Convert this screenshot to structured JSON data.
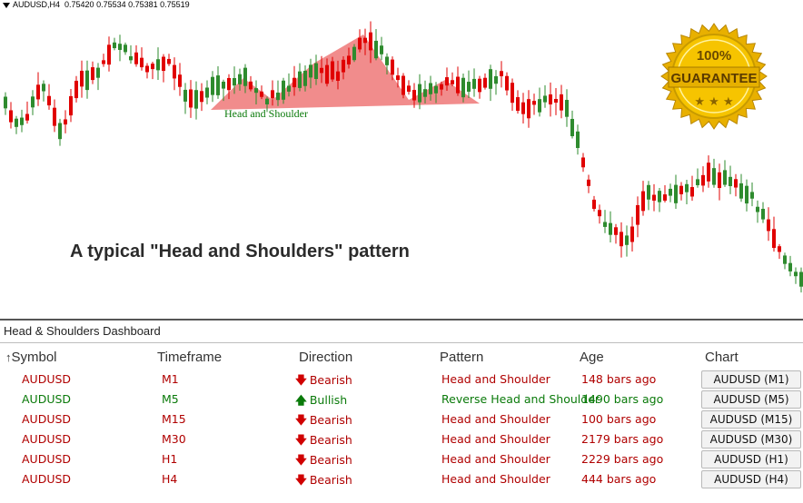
{
  "chart": {
    "ticker": "AUDUSD,H4",
    "ohlc": "0.75420 0.75534 0.75381 0.75519",
    "pattern_label": "Head and Shoulder",
    "caption": "A typical \"Head and Shoulders\" pattern",
    "badge": {
      "line1": "100%",
      "line2": "GUARANTEE"
    },
    "colors": {
      "bull": "#2e8b2e",
      "bear": "#e00000",
      "pattern_fill": "#f08080",
      "label": "#0a7a0a"
    }
  },
  "dashboard": {
    "title": "Head & Shoulders Dashboard",
    "columns": [
      "Symbol",
      "Timeframe",
      "Direction",
      "Pattern",
      "Age",
      "Chart"
    ],
    "sort_icon": "sort-up-arrow-icon",
    "rows": [
      {
        "symbol": "AUDUSD",
        "timeframe": "M1",
        "direction": "Bearish",
        "pattern": "Head and Shoulder",
        "age": "148 bars ago",
        "chart": "AUDUSD (M1)",
        "trend": "bear"
      },
      {
        "symbol": "AUDUSD",
        "timeframe": "M5",
        "direction": "Bullish",
        "pattern": "Reverse Head and Shoulder",
        "age": "1490 bars ago",
        "chart": "AUDUSD (M5)",
        "trend": "bull"
      },
      {
        "symbol": "AUDUSD",
        "timeframe": "M15",
        "direction": "Bearish",
        "pattern": "Head and Shoulder",
        "age": "100 bars ago",
        "chart": "AUDUSD (M15)",
        "trend": "bear"
      },
      {
        "symbol": "AUDUSD",
        "timeframe": "M30",
        "direction": "Bearish",
        "pattern": "Head and Shoulder",
        "age": "2179 bars ago",
        "chart": "AUDUSD (M30)",
        "trend": "bear"
      },
      {
        "symbol": "AUDUSD",
        "timeframe": "H1",
        "direction": "Bearish",
        "pattern": "Head and Shoulder",
        "age": "2229 bars ago",
        "chart": "AUDUSD (H1)",
        "trend": "bear"
      },
      {
        "symbol": "AUDUSD",
        "timeframe": "H4",
        "direction": "Bearish",
        "pattern": "Head and Shoulder",
        "age": "444 bars ago",
        "chart": "AUDUSD (H4)",
        "trend": "bear"
      }
    ]
  }
}
